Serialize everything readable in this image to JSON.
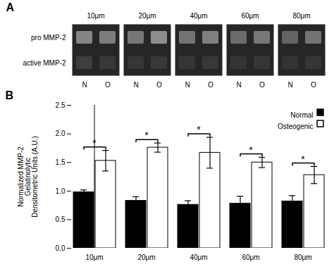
{
  "chart_data": [
    {
      "type": "heatmap",
      "title": "A",
      "groups": [
        "10μm",
        "20μm",
        "40μm",
        "60μm",
        "80μm"
      ],
      "categories": [
        "N",
        "O",
        "N",
        "O",
        "N",
        "O",
        "N",
        "O",
        "N",
        "O"
      ],
      "rows": [
        "pro MMP-2",
        "active MMP-2"
      ],
      "values": [
        [
          0.72,
          0.65,
          0.62,
          0.78,
          0.58,
          0.68,
          0.52,
          0.62,
          0.48,
          0.58
        ],
        [
          0.18,
          0.14,
          0.12,
          0.14,
          0.12,
          0.14,
          0.11,
          0.12,
          0.1,
          0.12
        ]
      ],
      "color": "#aaaaaa"
    },
    {
      "type": "bar",
      "title": "B",
      "categories": [
        "10μm",
        "20μm",
        "40μm",
        "60μm",
        "80μm"
      ],
      "series": [
        {
          "name": "Normal",
          "color": "#000000",
          "values": [
            0.98,
            0.83,
            0.76,
            0.78,
            0.82
          ],
          "errors": [
            0.04,
            0.07,
            0.07,
            0.13,
            0.1
          ]
        },
        {
          "name": "Osteogenic",
          "color": "#ffffff",
          "values": [
            1.53,
            1.76,
            1.67,
            1.5,
            1.28
          ],
          "errors": [
            0.18,
            0.08,
            0.27,
            0.09,
            0.15
          ]
        }
      ],
      "ylabel": "Normalized MMP-2\nGelatinolytic\nDensitometric Units (A.U.)",
      "ylim": [
        0.0,
        2.5
      ],
      "yticks": [
        {
          "value": 0,
          "label": "0.0"
        },
        0.5,
        {
          "value": 1,
          "label": "1.0"
        },
        1.5,
        {
          "value": 2,
          "label": "2.0"
        },
        2.5
      ],
      "annotation": "*",
      "legend": "upper right"
    }
  ]
}
